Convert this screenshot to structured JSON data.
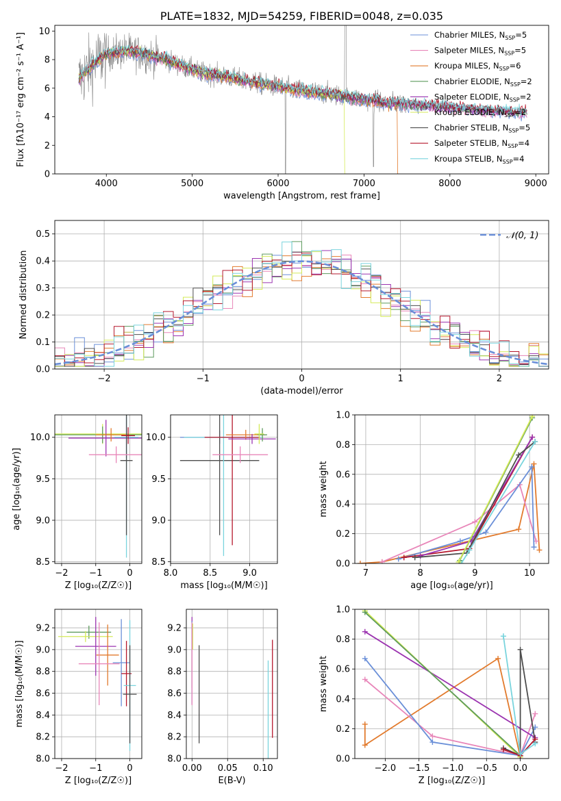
{
  "colors": {
    "cm": "#6a8fd8",
    "sm": "#e886b9",
    "km": "#e27a2c",
    "ce": "#5d9a5d",
    "se": "#9b33b0",
    "ke": "#d4ea57",
    "cs": "#4d4d4d",
    "ss": "#b5172c",
    "ks": "#79d4dd",
    "grid": "#b0b0b0",
    "data": "#7f7f7f"
  },
  "chart_data": [
    {
      "type": "line",
      "id": "spectrum",
      "title": "PLATE=1832, MJD=54259, FIBERID=0048, z=0.035",
      "xlabel": "wavelength [Angstrom, rest frame]",
      "ylabel": "Flux [fλ10⁻¹⁷ erg cm⁻² s⁻¹ A⁻¹]",
      "xlim": [
        3400,
        9150
      ],
      "ylim": [
        0,
        10.4
      ],
      "xticks": [
        4000,
        5000,
        6000,
        7000,
        8000,
        9000
      ],
      "yticks": [
        0,
        2,
        4,
        6,
        8,
        10
      ],
      "grid": false,
      "legend_position": "top-right",
      "legend": [
        {
          "key": "cm",
          "label": "Chabrier MILES, N",
          "sub": "SSP",
          "post": "=5"
        },
        {
          "key": "sm",
          "label": "Salpeter MILES, N",
          "sub": "SSP",
          "post": "=5"
        },
        {
          "key": "km",
          "label": "Kroupa MILES, N",
          "sub": "SSP",
          "post": "=6"
        },
        {
          "key": "ce",
          "label": "Chabrier ELODIE, N",
          "sub": "SSP",
          "post": "=2"
        },
        {
          "key": "se",
          "label": "Salpeter ELODIE, N",
          "sub": "SSP",
          "post": "=2"
        },
        {
          "key": "ke",
          "label": "Kroupa ELODIE, N",
          "sub": "SSP",
          "post": "=2"
        },
        {
          "key": "cs",
          "label": "Chabrier STELIB, N",
          "sub": "SSP",
          "post": "=5"
        },
        {
          "key": "ss",
          "label": "Salpeter STELIB, N",
          "sub": "SSP",
          "post": "=4"
        },
        {
          "key": "ks",
          "label": "Kroupa STELIB, N",
          "sub": "SSP",
          "post": "=4"
        }
      ],
      "continuum": [
        [
          3680,
          6.6
        ],
        [
          3850,
          7.7
        ],
        [
          4000,
          8.4
        ],
        [
          4250,
          8.6
        ],
        [
          4500,
          8.3
        ],
        [
          4700,
          8.0
        ],
        [
          4900,
          7.5
        ],
        [
          5100,
          7.1
        ],
        [
          5400,
          6.8
        ],
        [
          5700,
          6.4
        ],
        [
          6000,
          6.1
        ],
        [
          6300,
          5.8
        ],
        [
          6600,
          5.6
        ],
        [
          6900,
          5.3
        ],
        [
          7200,
          5.0
        ],
        [
          7500,
          4.9
        ],
        [
          7800,
          4.75
        ],
        [
          8100,
          4.6
        ],
        [
          8400,
          4.45
        ],
        [
          8700,
          4.35
        ],
        [
          8900,
          4.3
        ]
      ],
      "model_ends": {
        "km": 7420,
        "ke": 6800,
        "cm": 8900,
        "ks": 8900
      }
    },
    {
      "type": "line",
      "id": "residuals",
      "xlabel": "(data-model)/error",
      "ylabel": "Normed distribution",
      "xlim": [
        -2.5,
        2.5
      ],
      "ylim": [
        0,
        0.55
      ],
      "xticks": [
        -2,
        -1,
        0,
        1,
        2
      ],
      "xtick_labels": [
        "−2",
        "−1",
        "0",
        "1",
        "2"
      ],
      "yticks": [
        0.0,
        0.1,
        0.2,
        0.3,
        0.4,
        0.5
      ],
      "ytick_labels": [
        "0.0",
        "0.1",
        "0.2",
        "0.3",
        "0.4",
        "0.5"
      ],
      "grid": true,
      "legend_position": "top-right",
      "gaussian_label": "𝒩(0, 1)",
      "bin_width": 0.1
    },
    {
      "type": "scatter",
      "id": "age-vs-Z",
      "xlabel": "Z [log₁₀(Z/Z☉)]",
      "ylabel": "age  [log₁₀(age/yr)]",
      "xlim": [
        -2.2,
        0.35
      ],
      "ylim": [
        8.48,
        10.27
      ],
      "xticks": [
        -2,
        -1,
        0
      ],
      "xtick_labels": [
        "−2",
        "−1",
        "0"
      ],
      "yticks": [
        8.5,
        9.0,
        9.5,
        10.0
      ],
      "ytick_labels": [
        "8.5",
        "9.0",
        "9.5",
        "10.0"
      ],
      "grid": true,
      "series": [
        {
          "key": "ke",
          "x": -0.8,
          "xerr": 1.5,
          "y": 10.04,
          "yerr": 0.12
        },
        {
          "key": "ce",
          "x": -0.8,
          "xerr": 1.45,
          "y": 10.03,
          "yerr": 0.1
        },
        {
          "key": "se",
          "x": -0.7,
          "xerr": 1.1,
          "y": 9.99,
          "yerr": 0.22
        },
        {
          "key": "km",
          "x": -0.55,
          "xerr": 0.45,
          "y": 10.03,
          "yerr": 0.08
        },
        {
          "key": "cm",
          "x": -0.1,
          "xerr": 0.35,
          "y": 10.0,
          "yerr": 0.25
        },
        {
          "key": "ks",
          "x": -0.1,
          "xerr": 0.35,
          "y": 10.0,
          "yerr": 1.45
        },
        {
          "key": "cs",
          "x": -0.1,
          "xerr": 0.18,
          "y": 9.72,
          "yerr": 0.9
        },
        {
          "key": "ss",
          "x": -0.05,
          "xerr": 0.2,
          "y": 10.02,
          "yerr": 0.1
        },
        {
          "key": "sm",
          "x": -0.4,
          "xerr": 0.8,
          "y": 9.79,
          "yerr": 0.1
        }
      ]
    },
    {
      "type": "scatter",
      "id": "age-vs-mass",
      "xlabel": "mass [log₁₀(M/M☉)]",
      "ylim": [
        8.48,
        10.27
      ],
      "xlim": [
        8.0,
        9.35
      ],
      "xticks": [
        8.0,
        8.5,
        9.0
      ],
      "xtick_labels": [
        "8.0",
        "8.5",
        "9.0"
      ],
      "yticks": [
        8.5,
        9.0,
        9.5,
        10.0
      ],
      "ytick_labels": [
        "8.5",
        "9.0",
        "9.5",
        "10.0"
      ],
      "grid": true,
      "series": [
        {
          "key": "cm",
          "x": 8.62,
          "xerr": 0.5,
          "y": 10.0,
          "yerr": 0.08
        },
        {
          "key": "cs",
          "x": 8.62,
          "xerr": 0.5,
          "y": 9.72,
          "yerr": 0.9
        },
        {
          "key": "ks",
          "x": 8.67,
          "xerr": 0.5,
          "y": 10.0,
          "yerr": 1.43
        },
        {
          "key": "ss",
          "x": 8.78,
          "xerr": 0.35,
          "y": 10.0,
          "yerr": 1.3
        },
        {
          "key": "sm",
          "x": 8.88,
          "xerr": 0.35,
          "y": 9.79,
          "yerr": 0.1
        },
        {
          "key": "km",
          "x": 8.95,
          "xerr": 0.25,
          "y": 10.03,
          "yerr": 0.06
        },
        {
          "key": "se",
          "x": 9.03,
          "xerr": 0.3,
          "y": 9.98,
          "yerr": 0.06
        },
        {
          "key": "ce",
          "x": 9.16,
          "xerr": 0.06,
          "y": 10.03,
          "yerr": 0.08
        },
        {
          "key": "ke",
          "x": 9.12,
          "xerr": 0.06,
          "y": 10.04,
          "yerr": 0.12
        }
      ]
    },
    {
      "type": "line",
      "id": "mass-weight-vs-age",
      "xlabel": "age  [log₁₀(age/yr)]",
      "ylabel": "mass weight",
      "xlim": [
        6.8,
        10.35
      ],
      "ylim": [
        0,
        1.0
      ],
      "xticks": [
        7,
        8,
        9,
        10
      ],
      "xtick_labels": [
        "7",
        "8",
        "9",
        "10"
      ],
      "yticks": [
        0.0,
        0.2,
        0.4,
        0.6,
        0.8,
        1.0
      ],
      "ytick_labels": [
        "0.0",
        "0.2",
        "0.4",
        "0.6",
        "0.8",
        "1.0"
      ],
      "grid": true,
      "series": [
        {
          "key": "km",
          "x": [
            6.9,
            7.3,
            9.8,
            10.08,
            10.18
          ],
          "y": [
            0.0,
            0.01,
            0.23,
            0.67,
            0.09
          ]
        },
        {
          "key": "sm",
          "x": [
            7.3,
            9.0,
            9.82,
            10.12
          ],
          "y": [
            0.01,
            0.28,
            0.53,
            0.15
          ]
        },
        {
          "key": "cm",
          "x": [
            7.6,
            8.73,
            9.2,
            10.04,
            10.08
          ],
          "y": [
            0.03,
            0.15,
            0.21,
            0.65,
            0.11
          ]
        },
        {
          "key": "ss",
          "x": [
            7.7,
            8.9,
            10.05
          ],
          "y": [
            0.04,
            0.1,
            0.85
          ]
        },
        {
          "key": "se",
          "x": [
            8.0,
            8.93,
            10.05
          ],
          "y": [
            0.05,
            0.15,
            0.85
          ]
        },
        {
          "key": "cs",
          "x": [
            7.9,
            8.85,
            9.8,
            10.1
          ],
          "y": [
            0.04,
            0.07,
            0.73,
            0.82
          ]
        },
        {
          "key": "ks",
          "x": [
            8.75,
            8.9,
            10.1
          ],
          "y": [
            0.0,
            0.09,
            0.82
          ]
        },
        {
          "key": "ce",
          "x": [
            8.72,
            10.05
          ],
          "y": [
            0.02,
            0.98
          ]
        },
        {
          "key": "ke",
          "x": [
            8.7,
            10.05
          ],
          "y": [
            0.01,
            0.99
          ]
        }
      ]
    },
    {
      "type": "scatter",
      "id": "mass-vs-Z",
      "xlabel": "Z [log₁₀(Z/Z☉)]",
      "ylabel": "mass [log₁₀(M/M☉)]",
      "xlim": [
        -2.2,
        0.35
      ],
      "ylim": [
        8.0,
        9.37
      ],
      "xticks": [
        -2,
        -1,
        0
      ],
      "xtick_labels": [
        "−2",
        "−1",
        "0"
      ],
      "yticks": [
        8.0,
        8.2,
        8.4,
        8.6,
        8.8,
        9.0,
        9.2
      ],
      "ytick_labels": [
        "8.0",
        "8.2",
        "8.4",
        "8.6",
        "8.8",
        "9.0",
        "9.2"
      ],
      "grid": true,
      "series": [
        {
          "key": "ce",
          "x": -1.2,
          "xerr": 0.65,
          "y": 9.16,
          "yerr": 0.06
        },
        {
          "key": "ke",
          "x": -1.3,
          "xerr": 0.8,
          "y": 9.12,
          "yerr": 0.05
        },
        {
          "key": "se",
          "x": -1.0,
          "xerr": 0.6,
          "y": 9.03,
          "yerr": 0.27
        },
        {
          "key": "km",
          "x": -0.65,
          "xerr": 0.33,
          "y": 8.95,
          "yerr": 0.28
        },
        {
          "key": "cm",
          "x": -0.25,
          "xerr": 0.25,
          "y": 8.88,
          "yerr": 0.4
        },
        {
          "key": "sm",
          "x": -0.9,
          "xerr": 0.6,
          "y": 8.87,
          "yerr": 0.38
        },
        {
          "key": "ss",
          "x": -0.1,
          "xerr": 0.15,
          "y": 8.78,
          "yerr": 0.3
        },
        {
          "key": "ks",
          "x": 0.0,
          "xerr": 0.18,
          "y": 8.67,
          "yerr": 0.6
        },
        {
          "key": "cs",
          "x": 0.0,
          "xerr": 0.2,
          "y": 8.59,
          "yerr": 0.45
        }
      ]
    },
    {
      "type": "scatter",
      "id": "mass-vs-EBV",
      "xlabel": "E(B-V)",
      "xlim": [
        -0.008,
        0.12
      ],
      "ylim": [
        8.0,
        9.37
      ],
      "xticks": [
        0.0,
        0.05,
        0.1
      ],
      "xtick_labels": [
        "0.00",
        "0.05",
        "0.10"
      ],
      "yticks": [
        8.0,
        8.2,
        8.4,
        8.6,
        8.8,
        9.0,
        9.2
      ],
      "ytick_labels": [
        "8.0",
        "8.2",
        "8.4",
        "8.6",
        "8.8",
        "9.0",
        "9.2"
      ],
      "grid": true,
      "series": [
        {
          "key": "se",
          "x": 0.0,
          "y": 9.03,
          "yerr": 0.27
        },
        {
          "key": "ce",
          "x": 0.0,
          "y": 9.16,
          "yerr": 0.06
        },
        {
          "key": "ke",
          "x": 0.001,
          "y": 9.12,
          "yerr": 0.12
        },
        {
          "key": "km",
          "x": 0.0,
          "y": 8.95,
          "yerr": 0.3
        },
        {
          "key": "cm",
          "x": 0.0,
          "y": 8.88,
          "yerr": 0.38
        },
        {
          "key": "sm",
          "x": 0.0,
          "y": 8.87,
          "yerr": 0.38
        },
        {
          "key": "cs",
          "x": 0.01,
          "y": 8.59,
          "yerr": 0.45
        },
        {
          "key": "ks",
          "x": 0.107,
          "y": 8.45,
          "yerr": 0.45
        },
        {
          "key": "ss",
          "x": 0.113,
          "y": 8.64,
          "yerr": 0.45
        }
      ]
    },
    {
      "type": "line",
      "id": "mass-weight-vs-Z",
      "xlabel": "Z [log₁₀(Z/Z☉)]",
      "ylabel": "mass weight",
      "xlim": [
        -2.45,
        0.42
      ],
      "ylim": [
        0,
        1.0
      ],
      "xticks": [
        -2.0,
        -1.5,
        -1.0,
        -0.5,
        0.0
      ],
      "xtick_labels": [
        "−2.0",
        "−1.5",
        "−1.0",
        "−0.5",
        "0.0"
      ],
      "yticks": [
        0.0,
        0.2,
        0.4,
        0.6,
        0.8,
        1.0
      ],
      "ytick_labels": [
        "0.0",
        "0.2",
        "0.4",
        "0.6",
        "0.8",
        "1.0"
      ],
      "grid": true,
      "series": [
        {
          "key": "km",
          "x": [
            -2.3,
            -2.3,
            -0.33,
            0.0
          ],
          "y": [
            0.23,
            0.09,
            0.67,
            0.01
          ]
        },
        {
          "key": "sm",
          "x": [
            -2.3,
            -1.3,
            0.0,
            0.22
          ],
          "y": [
            0.53,
            0.15,
            0.02,
            0.3
          ]
        },
        {
          "key": "cm",
          "x": [
            -2.3,
            -1.3,
            0.0,
            0.22
          ],
          "y": [
            0.67,
            0.11,
            0.02,
            0.21
          ]
        },
        {
          "key": "se",
          "x": [
            -2.3,
            0.22
          ],
          "y": [
            0.85,
            0.14
          ]
        },
        {
          "key": "ke",
          "x": [
            -2.3,
            0.0
          ],
          "y": [
            0.99,
            0.01
          ]
        },
        {
          "key": "ce",
          "x": [
            -2.3,
            0.0
          ],
          "y": [
            0.98,
            0.02
          ]
        },
        {
          "key": "cs",
          "x": [
            -0.25,
            0.0,
            0.0,
            0.22
          ],
          "y": [
            0.07,
            0.02,
            0.73,
            0.11
          ]
        },
        {
          "key": "ss",
          "x": [
            -0.25,
            0.0,
            0.22
          ],
          "y": [
            0.06,
            0.02,
            0.13
          ]
        },
        {
          "key": "ks",
          "x": [
            -0.25,
            -0.25,
            0.0,
            0.22
          ],
          "y": [
            0.82,
            0.82,
            0.03,
            0.1
          ]
        }
      ]
    }
  ]
}
